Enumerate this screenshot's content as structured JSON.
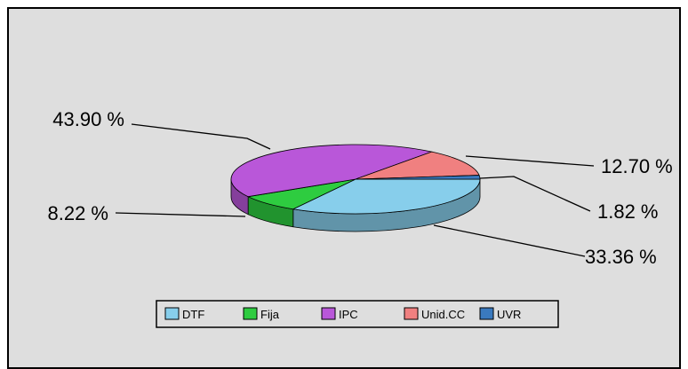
{
  "chart_data": {
    "type": "pie",
    "style": "3d",
    "title": "",
    "slices": [
      {
        "name": "DTF",
        "value": 33.36,
        "label": "33.36 %",
        "color": "#87ceeb"
      },
      {
        "name": "Fija",
        "value": 8.22,
        "label": "8.22 %",
        "color": "#2ecc40"
      },
      {
        "name": "IPC",
        "value": 43.9,
        "label": "43.90 %",
        "color": "#b957d9"
      },
      {
        "name": "Unid.CC",
        "value": 12.7,
        "label": "12.70 %",
        "color": "#f08080"
      },
      {
        "name": "UVR",
        "value": 1.82,
        "label": "1.82 %",
        "color": "#3a7abf"
      }
    ],
    "legend_position": "bottom"
  }
}
